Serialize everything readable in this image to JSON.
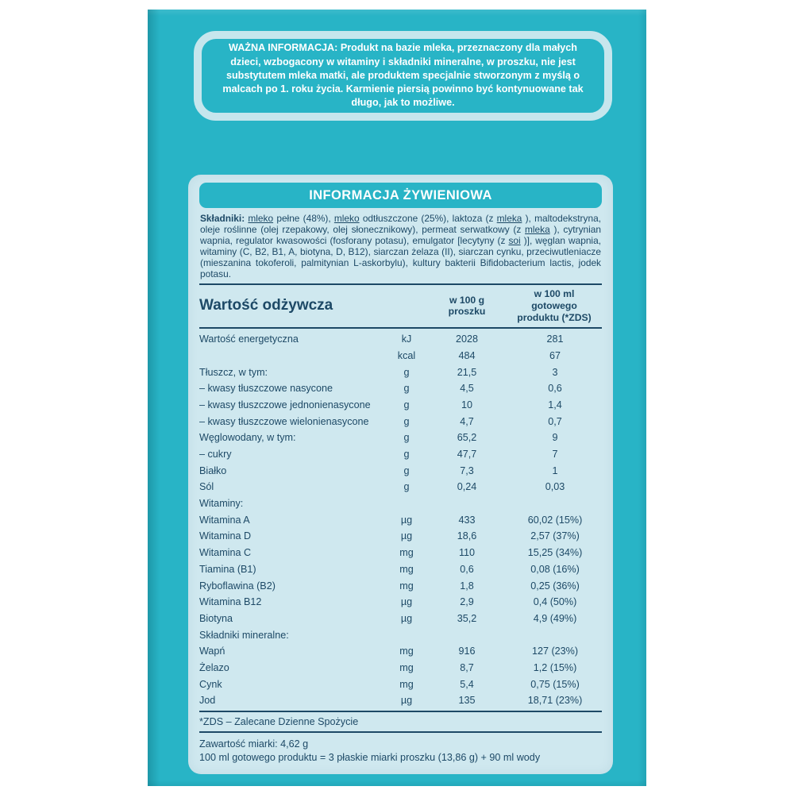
{
  "colors": {
    "teal": "#28b4c6",
    "panel_bg": "#cfe8ef",
    "text_navy": "#1d4966",
    "notice_border": "#c6e6ed"
  },
  "important_notice": {
    "text": "WAŻNA INFORMACJA: Produkt na bazie mleka, przeznaczony dla małych dzieci, wzbogacony w witaminy i składniki mineralne, w proszku, nie jest substytutem mleka matki, ale produktem specjalnie stworzonym z myślą o malcach po 1. roku życia. Karmienie piersią powinno być kontynuowane tak długo, jak to możliwe."
  },
  "nutrition_panel": {
    "title": "INFORMACJA ŻYWIENIOWA",
    "ingredients_segments": [
      {
        "t": "Składniki: ",
        "cls": "b"
      },
      {
        "t": "mleko",
        "cls": "u"
      },
      {
        "t": " pełne (48%), "
      },
      {
        "t": "mleko",
        "cls": "u"
      },
      {
        "t": " odtłuszczone (25%), laktoza (z "
      },
      {
        "t": "mleka",
        "cls": "u"
      },
      {
        "t": "), maltodekstryna, oleje roślinne (olej rzepakowy, olej słonecznikowy), permeat serwatkowy (z "
      },
      {
        "t": "mleka",
        "cls": "u"
      },
      {
        "t": "), cytrynian wapnia, regulator kwasowości (fosforany potasu), emulgator [lecytyny (z "
      },
      {
        "t": "soi",
        "cls": "u"
      },
      {
        "t": ")], węglan wapnia, witaminy (C, B2, B1, A, biotyna, D, B12), siarczan żelaza (II), siarczan cynku, przeciwutleniacze (mieszanina tokoferoli, palmitynian L-askorbylu), kultury bakterii Bifidobacterium lactis, jodek potasu."
      }
    ],
    "table": {
      "header": {
        "label": "Wartość odżywcza",
        "unit": "",
        "per_100g": "w 100 g\nproszku",
        "per_100ml": "w 100 ml\ngotowego\nproduktu (*ZDS)"
      },
      "rows": [
        {
          "label": "Wartość energetyczna",
          "unit": "kJ",
          "g": "2028",
          "ml": "281"
        },
        {
          "label": "",
          "unit": "kcal",
          "g": "484",
          "ml": "67"
        },
        {
          "label": "Tłuszcz, w tym:",
          "unit": "g",
          "g": "21,5",
          "ml": "3"
        },
        {
          "label": "– kwasy tłuszczowe nasycone",
          "unit": "g",
          "g": "4,5",
          "ml": "0,6"
        },
        {
          "label": "– kwasy tłuszczowe jednonienasycone",
          "unit": "g",
          "g": "10",
          "ml": "1,4"
        },
        {
          "label": "– kwasy tłuszczowe wielonienasycone",
          "unit": "g",
          "g": "4,7",
          "ml": "0,7"
        },
        {
          "label": "Węglowodany, w tym:",
          "unit": "g",
          "g": "65,2",
          "ml": "9"
        },
        {
          "label": "– cukry",
          "unit": "g",
          "g": "47,7",
          "ml": "7"
        },
        {
          "label": "Białko",
          "unit": "g",
          "g": "7,3",
          "ml": "1"
        },
        {
          "label": "Sól",
          "unit": "g",
          "g": "0,24",
          "ml": "0,03"
        },
        {
          "label": "Witaminy:",
          "unit": "",
          "g": "",
          "ml": "",
          "cls": "section"
        },
        {
          "label": "Witamina A",
          "unit": "µg",
          "g": "433",
          "ml": "60,02 (15%)"
        },
        {
          "label": "Witamina D",
          "unit": "µg",
          "g": "18,6",
          "ml": "2,57 (37%)"
        },
        {
          "label": "Witamina C",
          "unit": "mg",
          "g": "110",
          "ml": "15,25 (34%)"
        },
        {
          "label": "Tiamina (B1)",
          "unit": "mg",
          "g": "0,6",
          "ml": "0,08 (16%)"
        },
        {
          "label": "Ryboflawina (B2)",
          "unit": "mg",
          "g": "1,8",
          "ml": "0,25 (36%)"
        },
        {
          "label": "Witamina B12",
          "unit": "µg",
          "g": "2,9",
          "ml": "0,4 (50%)"
        },
        {
          "label": "Biotyna",
          "unit": "µg",
          "g": "35,2",
          "ml": "4,9 (49%)"
        },
        {
          "label": "Składniki mineralne:",
          "unit": "",
          "g": "",
          "ml": "",
          "cls": "section"
        },
        {
          "label": "Wapń",
          "unit": "mg",
          "g": "916",
          "ml": "127 (23%)"
        },
        {
          "label": "Żelazo",
          "unit": "mg",
          "g": "8,7",
          "ml": "1,2 (15%)"
        },
        {
          "label": "Cynk",
          "unit": "mg",
          "g": "5,4",
          "ml": "0,75 (15%)"
        },
        {
          "label": "Jod",
          "unit": "µg",
          "g": "135",
          "ml": "18,71 (23%)"
        }
      ]
    },
    "footnote": "*ZDS – Zalecane Dzienne Spożycie",
    "scoop_lines": [
      "Zawartość miarki: 4,62 g",
      "100 ml gotowego produktu = 3 płaskie miarki proszku (13,86 g) + 90 ml wody"
    ]
  }
}
